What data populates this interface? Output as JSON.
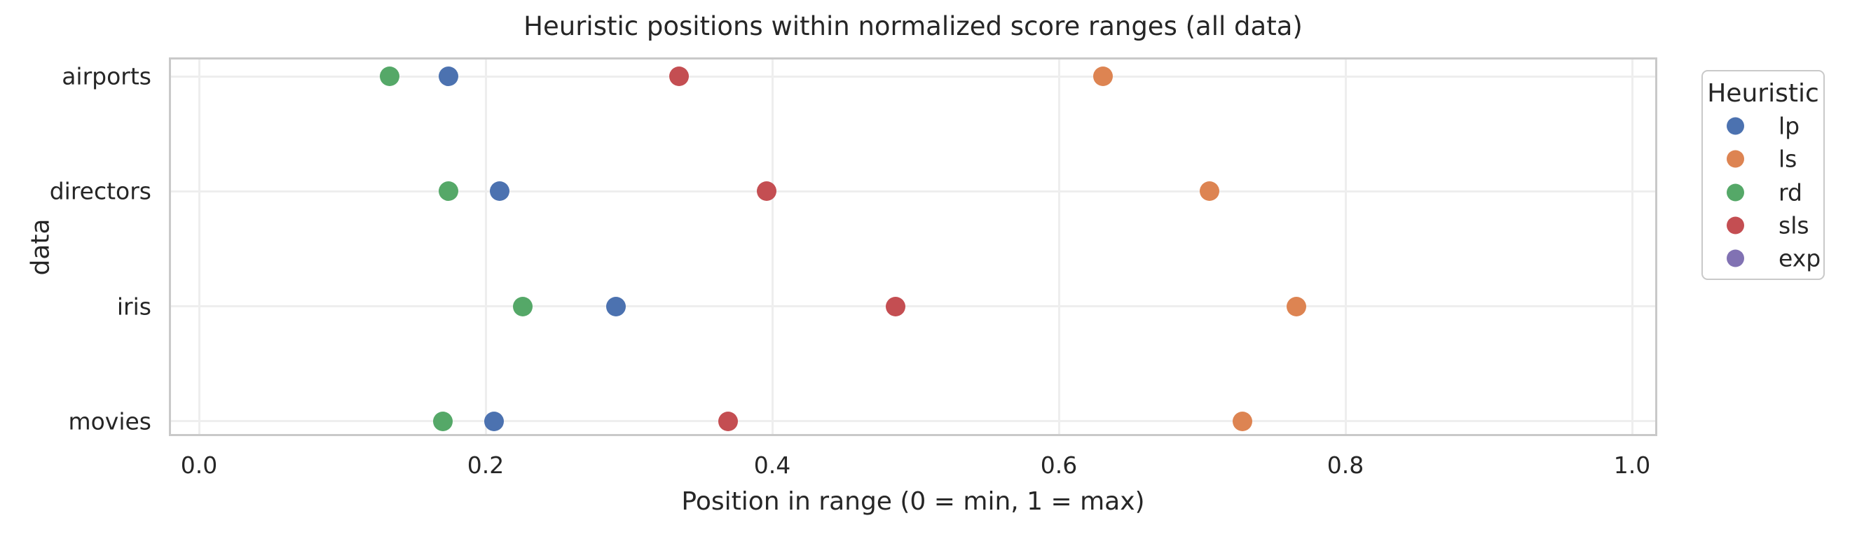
{
  "chart_data": {
    "type": "scatter",
    "orientation": "horizontal-categorical",
    "title": "Heuristic positions within normalized score ranges (all data)",
    "xlabel": "Position in range (0 = min, 1 = max)",
    "ylabel": "data",
    "xlim": [
      -0.02,
      1.02
    ],
    "xticks": [
      0.0,
      0.2,
      0.4,
      0.6,
      0.8,
      1.0
    ],
    "grid": true,
    "background": "#ffffff",
    "categories": [
      "airports",
      "directors",
      "iris",
      "movies"
    ],
    "legend": {
      "title": "Heuristic",
      "position": "right-outside"
    },
    "series": [
      {
        "name": "lp",
        "color": "#4C72B0",
        "values": [
          0.174,
          0.21,
          0.291,
          0.206
        ]
      },
      {
        "name": "ls",
        "color": "#DD8452",
        "values": [
          0.631,
          0.705,
          0.766,
          0.728
        ]
      },
      {
        "name": "rd",
        "color": "#55A868",
        "values": [
          0.133,
          0.174,
          0.226,
          0.17
        ]
      },
      {
        "name": "sls",
        "color": "#C44E52",
        "values": [
          0.335,
          0.396,
          0.486,
          0.369
        ]
      },
      {
        "name": "exp",
        "color": "#8172B3",
        "values": []
      }
    ]
  }
}
